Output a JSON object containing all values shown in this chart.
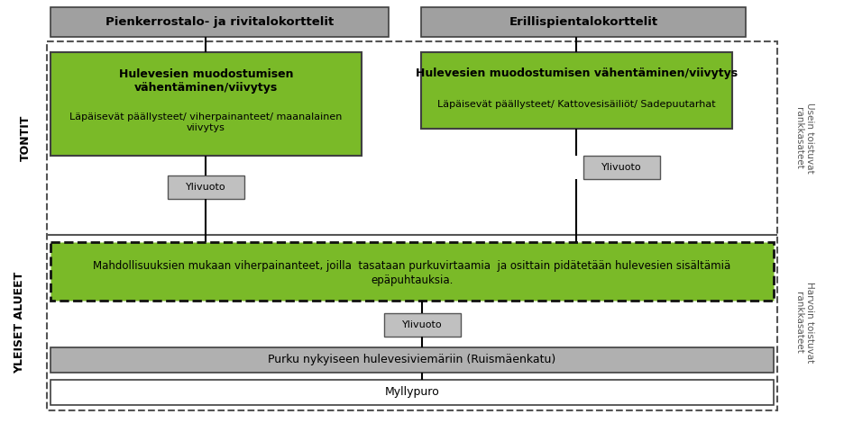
{
  "fig_width": 9.37,
  "fig_height": 4.7,
  "dpi": 100,
  "bg_color": "#ffffff",
  "gray_header_color": "#a0a0a0",
  "green_box_color": "#7aba28",
  "gray_ylivuoto_color": "#c0c0c0",
  "gray_purku_color": "#b0b0b0",
  "white_box_color": "#ffffff",
  "dashed_border_color": "#555555",
  "header1": "Pienkerrostalo- ja rivitalokorttelit",
  "header2": "Erillispientalokorttelit",
  "left_label1": "TONTIT",
  "left_label2": "YLEISET ALUEET",
  "right_label1": "Usein toistuvat\nrankkasateet",
  "right_label2": "Harvoin toistuvat\nrankkasateet",
  "green_box1_title": "Hulevesien muodostumisen\nvähentäminen/viivytys",
  "green_box1_body": "Läpäisevät päällysteet/ viherpainanteet/ maanalainen\nviivytys",
  "green_box2_title": "Hulevesien muodostumisen vähentäminen/viivytys",
  "green_box2_body": "Läpäisevät päällysteet/ Kattovesisäiliöt/ Sadepuutarhat",
  "ylivuoto_label": "Ylivuoto",
  "green_wide_box_line1": "Mahdollisuuksien mukaan viherpainanteet, joilla  tasataan purkuvirtaamia  ja osittain pidätetään hulevesien sisältämiä",
  "green_wide_box_line2": "epäpuhtauksia.",
  "gray_box_text": "Purku nykyiseen hulevesiviemäriin (Ruismäenkatu)",
  "white_box_text": "Myllypuro"
}
